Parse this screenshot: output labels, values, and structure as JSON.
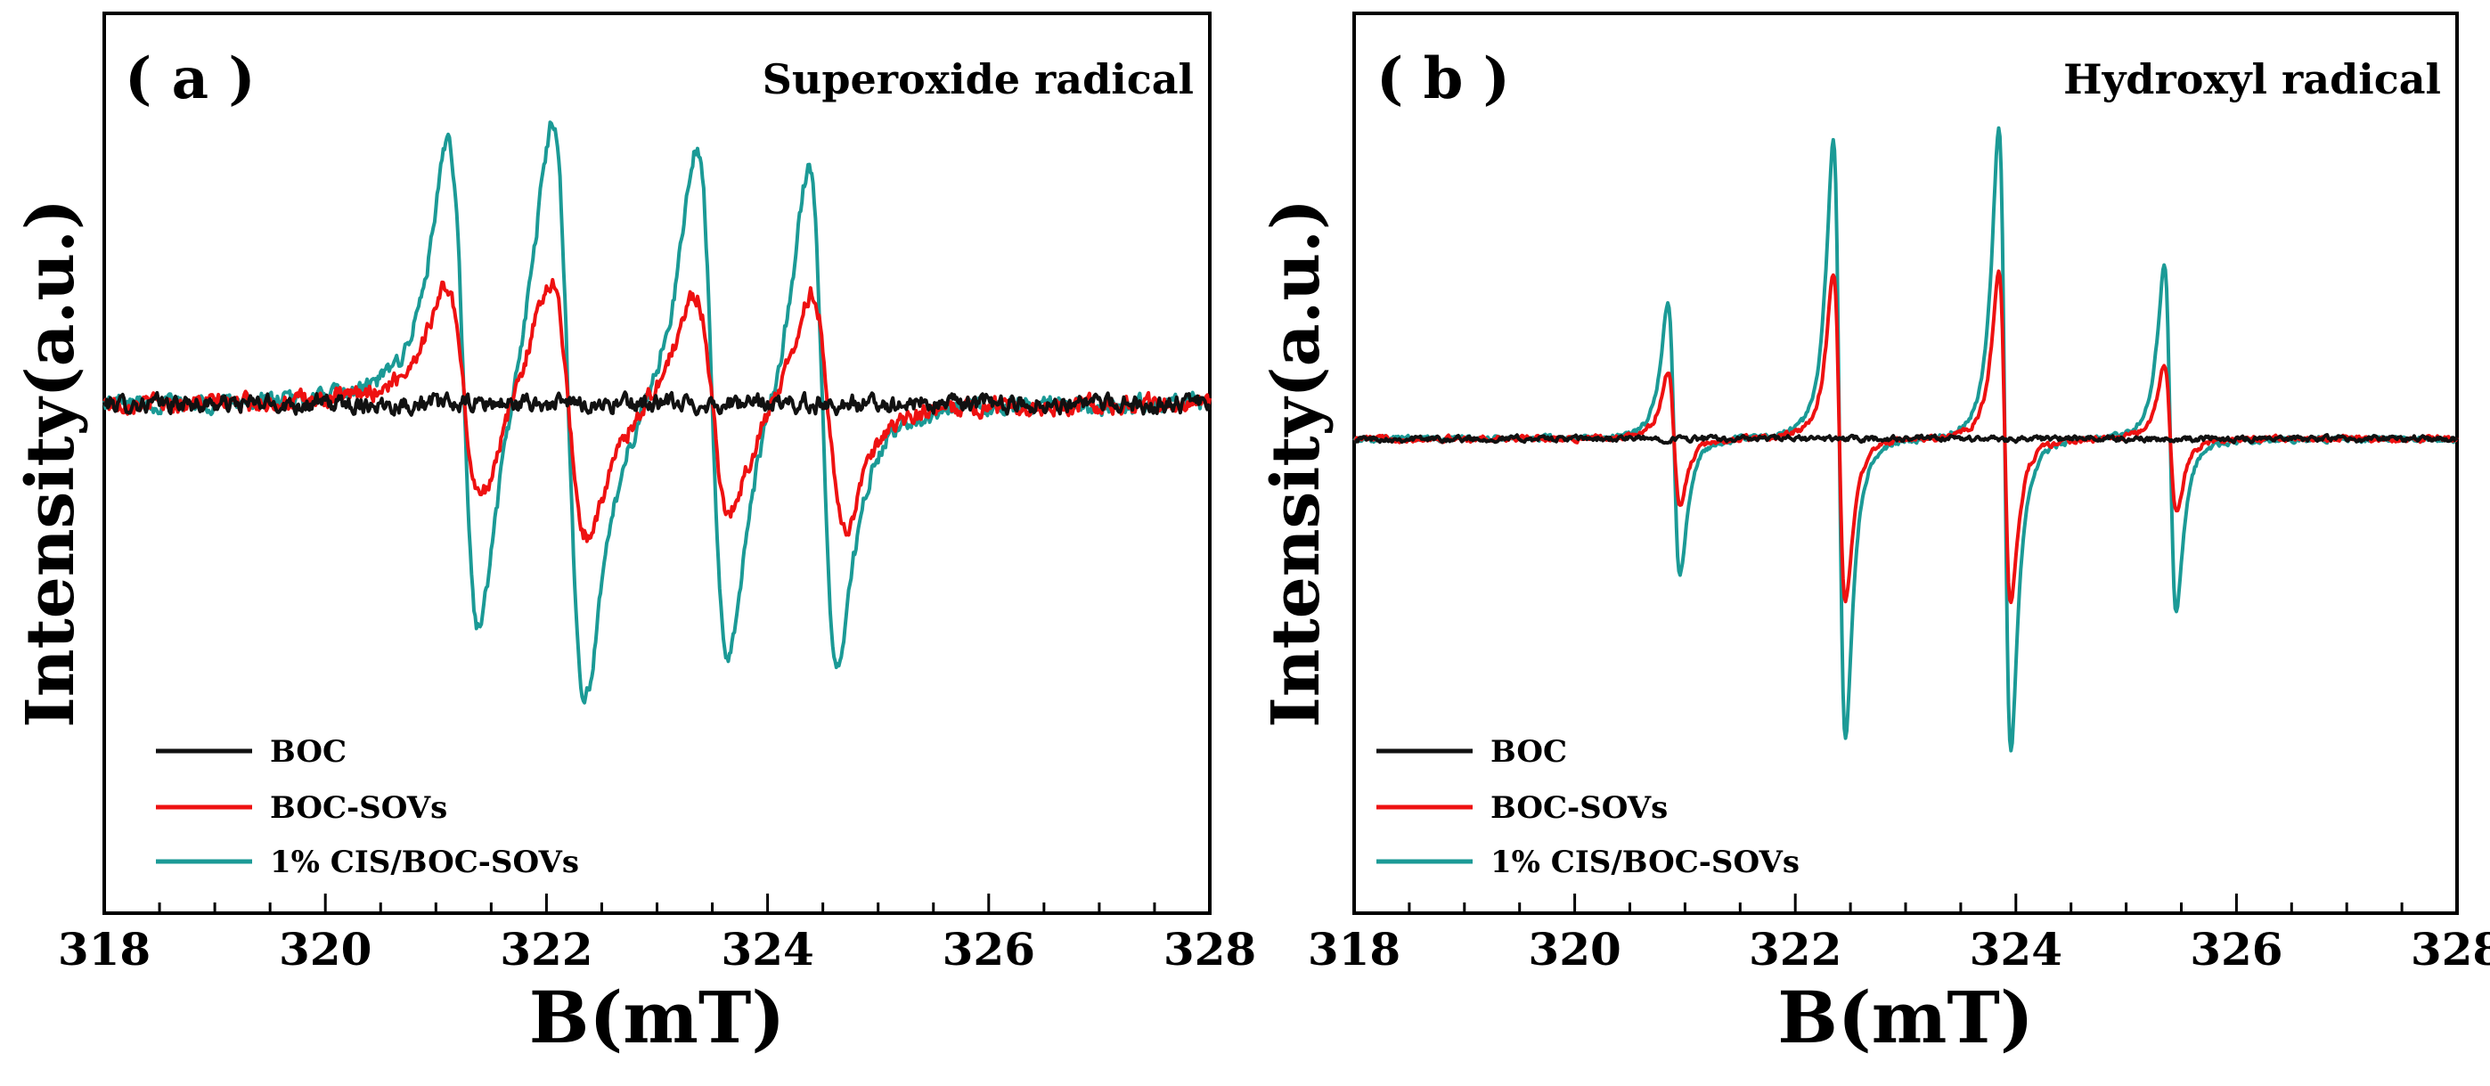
{
  "colors": {
    "BOC": "#111111",
    "BOC-SOVs": "#ee1111",
    "1% CIS/BOC-SOVs": "#1b9a96",
    "axis": "#000000"
  },
  "chart_data": [
    {
      "type": "line",
      "panel": "( a )",
      "title": "Superoxide radical",
      "xlabel": "B(mT)",
      "ylabel": "Intensity(a.u.)",
      "xlim": [
        318,
        328
      ],
      "ylim": [
        -1.5,
        1.15
      ],
      "x_ticks": [
        318,
        320,
        322,
        324,
        326,
        328
      ],
      "x_tick_labels": [
        "318",
        "320",
        "322",
        "324",
        "326",
        "328"
      ],
      "legend_position": "bottom-left",
      "legend_style": "line",
      "baseline": 0.0,
      "noise_amplitude": 0.035,
      "series": [
        {
          "name": "BOC",
          "color_key": "BOC",
          "peaks": []
        },
        {
          "name": "BOC-SOVs",
          "color_key": "BOC-SOVs",
          "peaks": [
            {
              "center": 321.25,
              "amp": 0.44,
              "width": 0.16
            },
            {
              "center": 322.2,
              "amp": 0.53,
              "width": 0.17
            },
            {
              "center": 323.5,
              "amp": 0.45,
              "width": 0.16
            },
            {
              "center": 324.55,
              "amp": 0.48,
              "width": 0.15
            }
          ]
        },
        {
          "name": "1% CIS/BOC-SOVs",
          "color_key": "1% CIS/BOC-SOVs",
          "peaks": [
            {
              "center": 321.25,
              "amp": 1.0,
              "width": 0.14
            },
            {
              "center": 322.2,
              "amp": 1.18,
              "width": 0.15
            },
            {
              "center": 323.5,
              "amp": 1.05,
              "width": 0.14
            },
            {
              "center": 324.5,
              "amp": 1.02,
              "width": 0.13
            }
          ]
        }
      ]
    },
    {
      "type": "line",
      "panel": "( b )",
      "title": "Hydroxyl radical",
      "xlabel": "B(mT)",
      "ylabel": "Intensity(a.u.)",
      "xlim": [
        318,
        328
      ],
      "ylim": [
        -1.45,
        1.3
      ],
      "x_ticks": [
        318,
        320,
        322,
        324,
        326,
        328
      ],
      "x_tick_labels": [
        "318",
        "320",
        "322",
        "324",
        "326",
        "328"
      ],
      "legend_position": "bottom-left",
      "legend_style": "line",
      "baseline": 0.0,
      "noise_amplitude": 0.012,
      "series": [
        {
          "name": "BOC",
          "color_key": "BOC",
          "peaks": []
        },
        {
          "name": "BOC-SOVs",
          "color_key": "BOC-SOVs",
          "peaks": [
            {
              "center": 320.9,
              "amp": 0.28,
              "width": 0.055
            },
            {
              "center": 322.4,
              "amp": 0.69,
              "width": 0.055
            },
            {
              "center": 323.9,
              "amp": 0.69,
              "width": 0.055
            },
            {
              "center": 325.4,
              "amp": 0.31,
              "width": 0.055
            }
          ]
        },
        {
          "name": "1% CIS/BOC-SOVs",
          "color_key": "1% CIS/BOC-SOVs",
          "peaks": [
            {
              "center": 320.9,
              "amp": 0.57,
              "width": 0.055
            },
            {
              "center": 322.4,
              "amp": 1.25,
              "width": 0.055
            },
            {
              "center": 323.9,
              "amp": 1.3,
              "width": 0.055
            },
            {
              "center": 325.4,
              "amp": 0.72,
              "width": 0.055
            }
          ]
        }
      ]
    }
  ]
}
